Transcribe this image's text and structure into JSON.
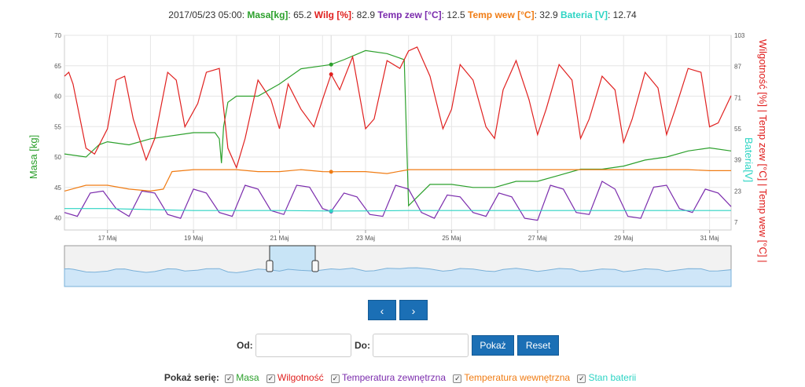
{
  "header": {
    "timestamp": "2017/05/23 05:00:",
    "items": [
      {
        "label": "Masa[kg]",
        "value": "65.2",
        "color": "#2ca02c"
      },
      {
        "label": "Wilg [%]",
        "value": "82.9",
        "color": "#e0201f"
      },
      {
        "label": "Temp zew [°C]",
        "value": "12.5",
        "color": "#7b2cad"
      },
      {
        "label": "Temp wew [°C]",
        "value": "32.9",
        "color": "#f07c14"
      },
      {
        "label": "Bateria [V]",
        "value": "12.74",
        "color": "#2dd4c4"
      }
    ]
  },
  "axes": {
    "left_title": "Masa [kg]",
    "right_title": "Wilgotność [%] | Temp zew [°C] | Temp wew [°C] |",
    "right_title2": "Bateria[V]",
    "left_ticks": [
      "40",
      "45",
      "50",
      "55",
      "60",
      "65",
      "70"
    ],
    "right_ticks": [
      "7",
      "23",
      "39",
      "55",
      "71",
      "87",
      "103"
    ],
    "x_ticks": [
      "17 Maj",
      "19 Maj",
      "21 Maj",
      "23 Maj",
      "25 Maj",
      "27 Maj",
      "29 Maj",
      "31 Maj"
    ]
  },
  "chart_data": {
    "type": "line",
    "x_start": "2017/05/16 00:00",
    "x_end": "2017/05/31 12:00",
    "x_unit": "days since 2017/05/16",
    "ylim_left": [
      38,
      70
    ],
    "ylim_right": [
      3,
      103
    ],
    "tooltip_x": 6.2,
    "series": [
      {
        "name": "Masa",
        "axis": "left",
        "color": "#2ca02c",
        "x": [
          0,
          0.5,
          0.8,
          1.0,
          1.5,
          2.0,
          3.0,
          3.5,
          3.6,
          3.65,
          3.7,
          3.8,
          4.0,
          4.5,
          5.0,
          5.5,
          6.0,
          6.2,
          6.5,
          7.0,
          7.5,
          7.9,
          8.0,
          8.5,
          9.0,
          9.5,
          10.0,
          10.5,
          11.0,
          11.5,
          12.0,
          12.5,
          13.0,
          13.5,
          14.0,
          14.5,
          15.0,
          15.5
        ],
        "y": [
          50.5,
          50,
          52,
          52.5,
          52,
          53,
          54,
          54,
          53,
          49,
          55,
          59,
          60,
          60,
          62,
          64.5,
          65,
          65.2,
          66,
          67.5,
          67,
          66,
          42,
          45.5,
          45.5,
          45,
          45,
          46,
          46,
          47,
          48,
          48,
          48.5,
          49.5,
          50,
          51,
          51.5,
          51
        ]
      },
      {
        "name": "Wilgotność",
        "axis": "right",
        "color": "#e0201f",
        "x": [
          0,
          0.1,
          0.2,
          0.5,
          0.7,
          1.0,
          1.2,
          1.4,
          1.6,
          1.9,
          2.1,
          2.4,
          2.6,
          2.8,
          3.1,
          3.3,
          3.6,
          3.8,
          4.0,
          4.2,
          4.5,
          4.8,
          5.0,
          5.2,
          5.5,
          5.8,
          6.0,
          6.2,
          6.4,
          6.7,
          7.0,
          7.2,
          7.5,
          7.8,
          8.0,
          8.2,
          8.5,
          8.8,
          9.0,
          9.2,
          9.5,
          9.8,
          10.0,
          10.2,
          10.5,
          10.8,
          11.0,
          11.2,
          11.5,
          11.8,
          12.0,
          12.2,
          12.5,
          12.8,
          13.0,
          13.2,
          13.5,
          13.8,
          14.0,
          14.2,
          14.5,
          14.8,
          15.0,
          15.2,
          15.5
        ],
        "y": [
          82,
          84,
          78,
          45,
          42,
          55,
          80,
          82,
          60,
          39,
          50,
          84,
          80,
          56,
          68,
          84,
          86,
          45,
          35,
          50,
          80,
          70,
          55,
          78,
          65,
          56,
          70,
          83,
          75,
          92,
          55,
          60,
          90,
          86,
          95,
          97,
          82,
          55,
          65,
          88,
          80,
          56,
          50,
          75,
          90,
          70,
          52,
          65,
          88,
          80,
          50,
          60,
          82,
          75,
          48,
          60,
          84,
          76,
          52,
          65,
          86,
          84,
          56,
          58,
          72
        ]
      },
      {
        "name": "Temperatura zewnętrzna",
        "axis": "right",
        "color": "#7b2cad",
        "x": [
          0,
          0.3,
          0.6,
          0.9,
          1.2,
          1.5,
          1.8,
          2.1,
          2.4,
          2.7,
          3.0,
          3.3,
          3.6,
          3.9,
          4.2,
          4.5,
          4.8,
          5.1,
          5.4,
          5.7,
          6.0,
          6.2,
          6.5,
          6.8,
          7.1,
          7.4,
          7.7,
          8.0,
          8.3,
          8.6,
          8.9,
          9.2,
          9.5,
          9.8,
          10.1,
          10.4,
          10.7,
          11.0,
          11.3,
          11.6,
          11.9,
          12.2,
          12.5,
          12.8,
          13.1,
          13.4,
          13.7,
          14.0,
          14.3,
          14.6,
          14.9,
          15.2,
          15.5
        ],
        "y": [
          12,
          10,
          22,
          23,
          14,
          10,
          23,
          22,
          11,
          9,
          24,
          22,
          12,
          10,
          26,
          24,
          13,
          11,
          26,
          25,
          14,
          12.5,
          22,
          20,
          11,
          10,
          26,
          24,
          12,
          9,
          21,
          20,
          12,
          10,
          22,
          20,
          9,
          8,
          26,
          24,
          12,
          11,
          28,
          24,
          10,
          9,
          25,
          26,
          14,
          12,
          24,
          22,
          15
        ]
      },
      {
        "name": "Temperatura wewnętrzna",
        "axis": "right",
        "color": "#f07c14",
        "x": [
          0,
          0.5,
          1.0,
          1.5,
          2.0,
          2.3,
          2.5,
          3.0,
          3.5,
          4.0,
          4.5,
          5.0,
          5.5,
          6.0,
          6.2,
          6.5,
          7.0,
          7.5,
          8.0,
          8.5,
          9.0,
          9.5,
          10.0,
          10.5,
          11.0,
          11.5,
          12.0,
          12.5,
          13.0,
          13.5,
          14.0,
          14.5,
          15.0,
          15.5
        ],
        "y": [
          23,
          26,
          26,
          24,
          23,
          24,
          33,
          34,
          34,
          34,
          33,
          33,
          34,
          33,
          32.9,
          33,
          33,
          32,
          34,
          34,
          34,
          34,
          34,
          34,
          34,
          34,
          34,
          34,
          34,
          34,
          34,
          34,
          33.5,
          33.5
        ]
      },
      {
        "name": "Stan baterii",
        "axis": "right",
        "color": "#2dd4c4",
        "x": [
          0,
          1,
          2,
          3,
          4,
          5,
          6,
          6.2,
          7,
          8,
          9,
          10,
          11,
          12,
          13,
          14,
          15,
          15.5
        ],
        "y": [
          14,
          14,
          13.5,
          13,
          13,
          13,
          12.8,
          12.74,
          12.8,
          13,
          13,
          13,
          13,
          13,
          13,
          13,
          13,
          13
        ]
      }
    ]
  },
  "nav": {
    "prev_label": "‹",
    "next_label": "›"
  },
  "range": {
    "from_label": "Od:",
    "to_label": "Do:",
    "from_value": "",
    "to_value": "",
    "show_label": "Pokaż",
    "reset_label": "Reset"
  },
  "series_toggle": {
    "label": "Pokaż serię:",
    "items": [
      {
        "label": "Masa",
        "color": "#2ca02c"
      },
      {
        "label": "Wilgotność",
        "color": "#e0201f"
      },
      {
        "label": "Temperatura zewnętrzna",
        "color": "#7b2cad"
      },
      {
        "label": "Temperatura wewnętrzna",
        "color": "#f07c14"
      },
      {
        "label": "Stan baterii",
        "color": "#2dd4c4"
      }
    ]
  }
}
